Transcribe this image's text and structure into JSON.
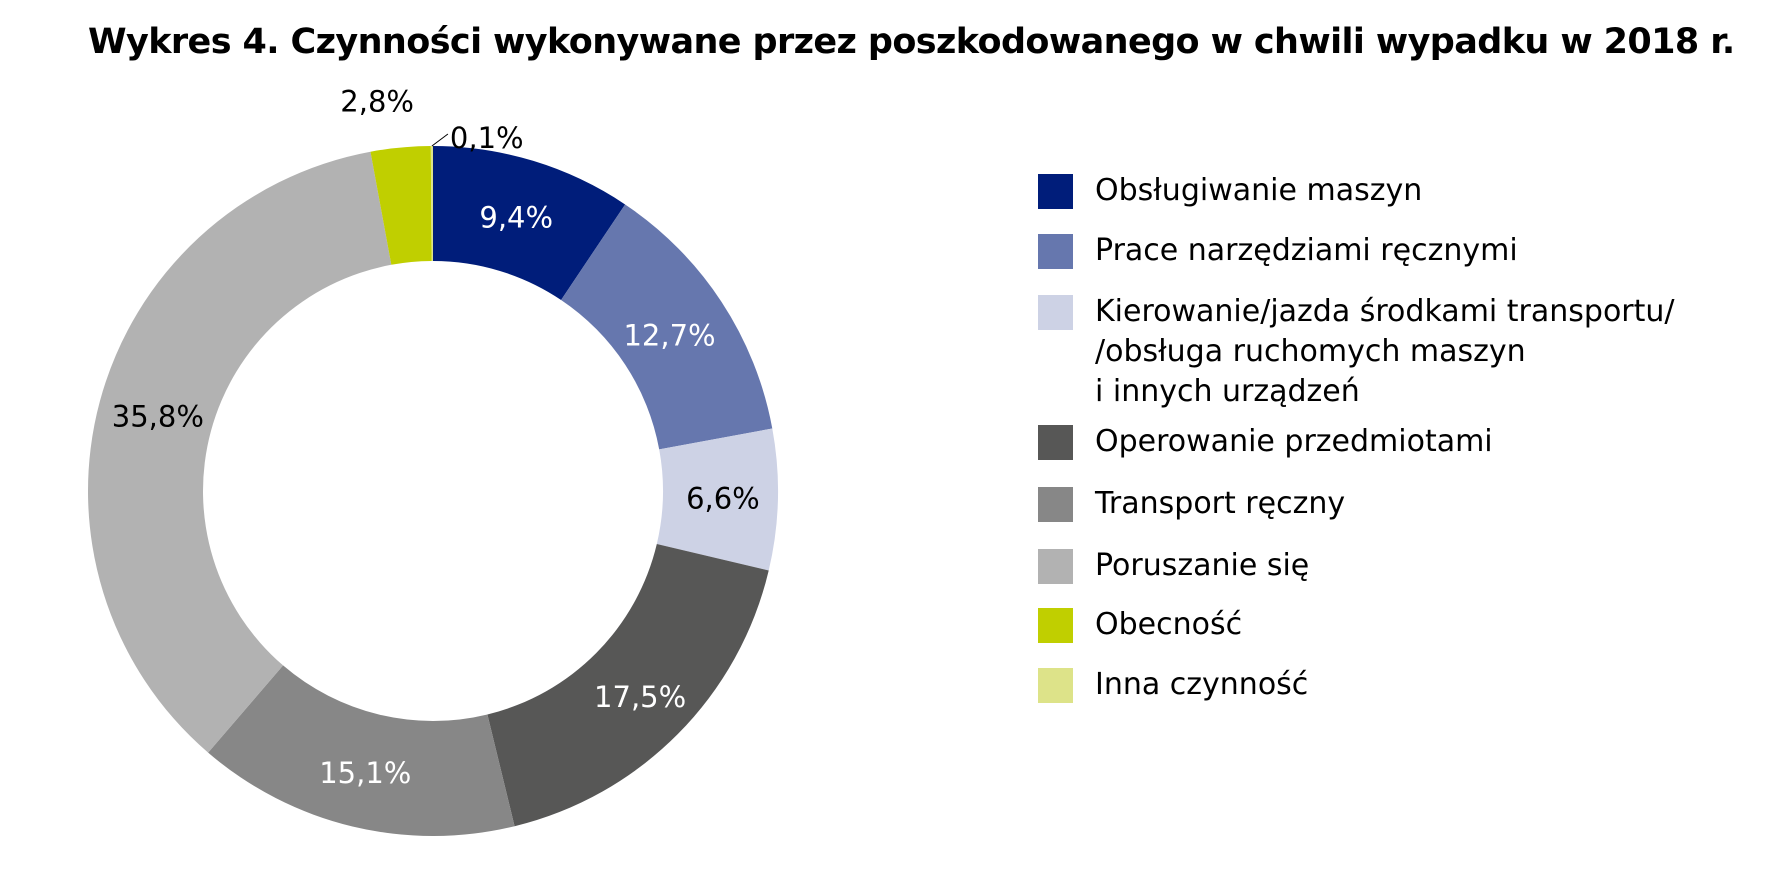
{
  "chart_data": {
    "type": "pie",
    "subtype": "donut",
    "title": "Wykres 4. Czynności wykonywane przez poszkodowanego w chwili wypadku w 2018 r.",
    "legend_position": "right",
    "slices": [
      {
        "name": [
          "Obsługiwanie maszyn"
        ],
        "value": 9.4,
        "label": "9,4%",
        "color": "#001d7a",
        "label_color": "#ffffff"
      },
      {
        "name": [
          "Prace narzędziami ręcznymi"
        ],
        "value": 12.7,
        "label": "12,7%",
        "color": "#6677ae",
        "label_color": "#ffffff"
      },
      {
        "name": [
          "Kierowanie/jazda środkami transportu/",
          "/obsługa ruchomych maszyn",
          "i innych urządzeń"
        ],
        "value": 6.6,
        "label": "6,6%",
        "color": "#cdd2e5",
        "label_color": "#000000"
      },
      {
        "name": [
          "Operowanie przedmiotami"
        ],
        "value": 17.5,
        "label": "17,5%",
        "color": "#575756",
        "label_color": "#ffffff"
      },
      {
        "name": [
          "Transport ręczny"
        ],
        "value": 15.1,
        "label": "15,1%",
        "color": "#878787",
        "label_color": "#ffffff"
      },
      {
        "name": [
          "Poruszanie się"
        ],
        "value": 35.8,
        "label": "35,8%",
        "color": "#b2b2b2",
        "label_color": "#000000"
      },
      {
        "name": [
          "Obecność"
        ],
        "value": 2.8,
        "label": "2,8%",
        "color": "#c0cf00",
        "label_color": "#000000"
      },
      {
        "name": [
          "Inna czynność"
        ],
        "value": 0.1,
        "label": "0,1%",
        "color": "#dde389",
        "label_color": "#000000"
      }
    ]
  }
}
